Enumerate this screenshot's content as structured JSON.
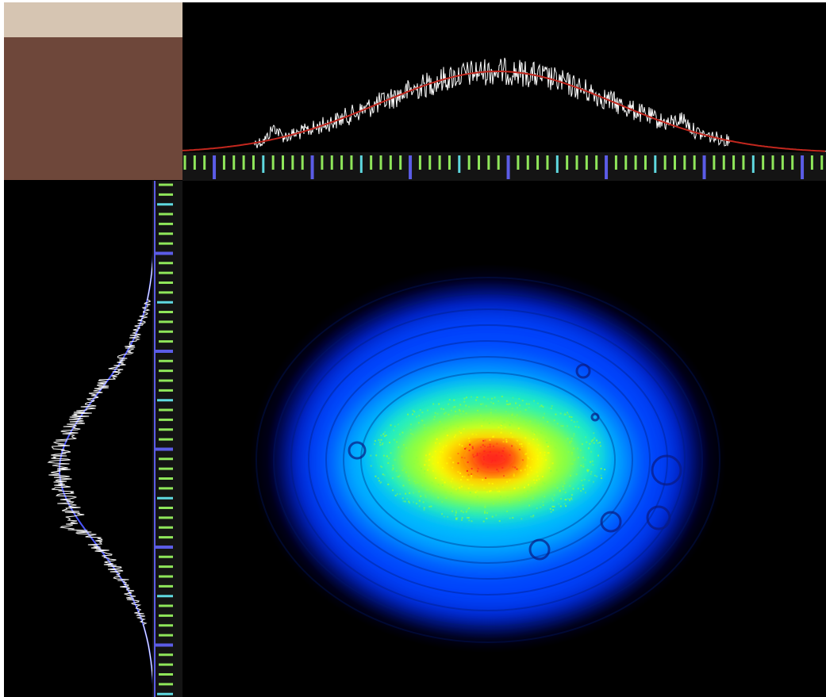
{
  "colors": {
    "corner_top": "#d6c5b2",
    "corner_main": "#6e473a",
    "background": "#000000",
    "ruler_background": "#141414",
    "tick_major": "#5b5ce6",
    "tick_medium": "#5fd9e0",
    "tick_minor": "#8fe65a",
    "h_fit_curve": "#c2271e",
    "v_fit_curve": "#4b55ff",
    "profile_trace": "#ffffff",
    "colormap": [
      "#000018",
      "#0010a0",
      "#0044ff",
      "#00b8ff",
      "#22f0c0",
      "#8cff40",
      "#ffff00",
      "#ffa000",
      "#ff1e1e"
    ]
  },
  "beam": {
    "outer_ring": "ellipse",
    "hot_spot": "red",
    "fringes": "concentric"
  },
  "h_ruler": {
    "major_every": 10,
    "medium_every": 5
  },
  "v_ruler": {
    "major_every": 10,
    "medium_every": 5
  },
  "h_profile": {
    "fit": "gaussian",
    "peak_position": 0.49
  },
  "v_profile": {
    "fit": "gaussian",
    "peak_position": 0.56
  }
}
